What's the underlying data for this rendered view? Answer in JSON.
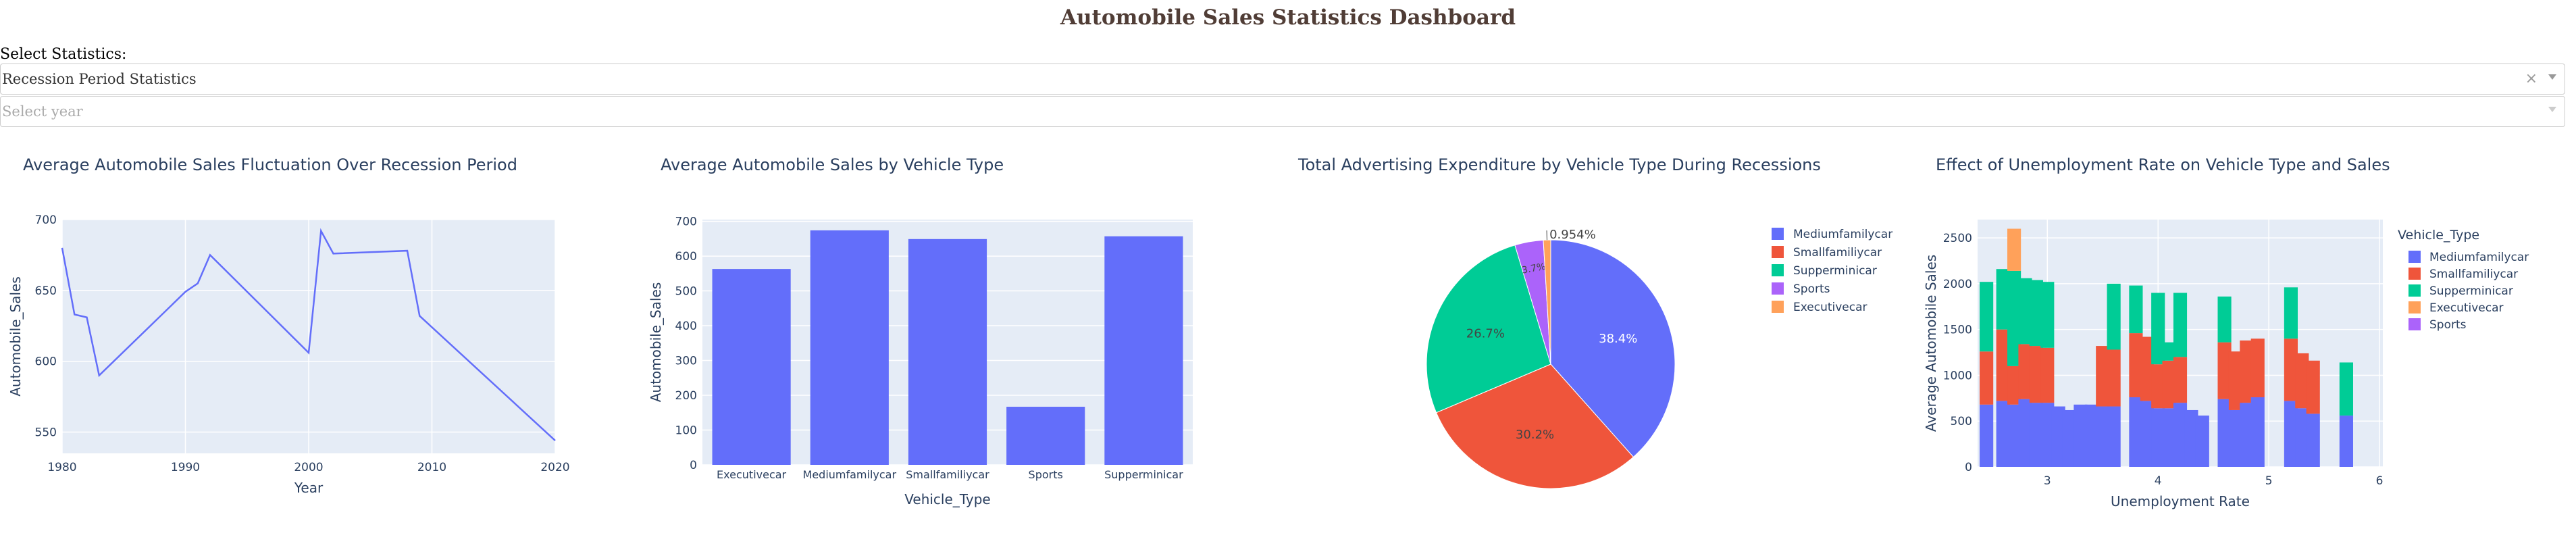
{
  "header": {
    "title": "Automobile Sales Statistics Dashboard"
  },
  "controls": {
    "select_label": "Select Statistics:",
    "statistics_value": "Recession Period Statistics",
    "clear_glyph": "×",
    "year_placeholder": "Select year"
  },
  "colors": {
    "blue": "#636efa",
    "red": "#EF553B",
    "green": "#00cc96",
    "purple": "#ab63fa",
    "orange": "#FFA15A",
    "plot_bg": "#E5ECF6",
    "title": "#503D36"
  },
  "chart_data": [
    {
      "type": "line",
      "title": "Average Automobile Sales Fluctuation Over Recession Period",
      "xlabel": "Year",
      "ylabel": "Automobile_Sales",
      "xlim": [
        1980,
        2020
      ],
      "ylim": [
        535,
        700
      ],
      "xticks": [
        1980,
        1990,
        2000,
        2010,
        2020
      ],
      "yticks": [
        550,
        600,
        650,
        700
      ],
      "x": [
        1980,
        1981,
        1982,
        1983,
        1990,
        1991,
        1992,
        2000,
        2001,
        2002,
        2008,
        2009,
        2020
      ],
      "y": [
        680,
        633,
        631,
        590,
        649,
        655,
        675,
        606,
        692,
        676,
        678,
        632,
        544
      ]
    },
    {
      "type": "bar",
      "title": "Average Automobile Sales by Vehicle Type",
      "xlabel": "Vehicle_Type",
      "ylabel": "Automobile_Sales",
      "ylim": [
        0,
        705
      ],
      "yticks": [
        0,
        100,
        200,
        300,
        400,
        500,
        600,
        700
      ],
      "categories": [
        "Executivecar",
        "Mediumfamilycar",
        "Smallfamiliycar",
        "Sports",
        "Supperminicar"
      ],
      "values": [
        563,
        674,
        649,
        167,
        657
      ]
    },
    {
      "type": "pie",
      "title": "Total Advertising Expenditure by Vehicle Type During Recessions",
      "labels": [
        "Mediumfamilycar",
        "Smallfamiliycar",
        "Supperminicar",
        "Sports",
        "Executivecar"
      ],
      "values": [
        38.4,
        30.2,
        26.7,
        3.7,
        0.954
      ],
      "text_labels": [
        "38.4%",
        "30.2%",
        "26.7%",
        "3.7%",
        "0.954%"
      ],
      "legend": "right"
    },
    {
      "type": "bar",
      "stacked": true,
      "title": "Effect of Unemployment Rate on Vehicle Type and Sales",
      "xlabel": "Unemployment Rate",
      "ylabel": "Average Automobile Sales",
      "legend_title": "Vehicle_Type",
      "legend": "right",
      "xlim": [
        2.37,
        6.03
      ],
      "ylim": [
        0,
        2700
      ],
      "xticks": [
        3,
        4,
        5,
        6
      ],
      "yticks": [
        0,
        500,
        1000,
        1500,
        2000,
        2500
      ],
      "series_order": [
        "Mediumfamilycar",
        "Smallfamiliycar",
        "Supperminicar",
        "Executivecar",
        "Sports"
      ],
      "x": [
        2.45,
        2.6,
        2.7,
        2.8,
        2.9,
        3.0,
        3.1,
        3.2,
        3.3,
        3.4,
        3.5,
        3.6,
        3.7,
        3.8,
        3.9,
        4.0,
        4.1,
        4.2,
        4.3,
        4.4,
        4.5,
        4.6,
        4.7,
        4.8,
        4.9,
        5.0,
        5.1,
        5.2,
        5.3,
        5.4,
        5.5,
        5.6,
        5.7,
        5.8,
        5.9,
        6.0
      ],
      "series": [
        {
          "name": "Mediumfamilycar",
          "values": [
            680,
            720,
            680,
            740,
            700,
            700,
            660,
            620,
            680,
            680,
            660,
            660,
            0,
            760,
            720,
            640,
            640,
            700,
            620,
            560,
            0,
            740,
            620,
            700,
            760,
            0,
            0,
            720,
            640,
            580,
            0,
            0,
            560,
            0,
            0,
            0
          ]
        },
        {
          "name": "Smallfamiliycar",
          "values": [
            580,
            780,
            420,
            600,
            620,
            600,
            0,
            0,
            0,
            0,
            660,
            620,
            0,
            700,
            700,
            480,
            520,
            500,
            0,
            0,
            0,
            620,
            640,
            680,
            640,
            0,
            0,
            680,
            600,
            580,
            0,
            0,
            0,
            0,
            0,
            0
          ]
        },
        {
          "name": "Supperminicar",
          "values": [
            760,
            660,
            1040,
            720,
            720,
            720,
            0,
            0,
            0,
            0,
            0,
            720,
            0,
            520,
            0,
            780,
            200,
            700,
            0,
            0,
            0,
            500,
            0,
            0,
            0,
            0,
            0,
            560,
            0,
            0,
            0,
            0,
            580,
            0,
            0,
            0
          ]
        },
        {
          "name": "Executivecar",
          "values": [
            0,
            0,
            460,
            0,
            0,
            0,
            0,
            0,
            0,
            0,
            0,
            0,
            0,
            0,
            0,
            0,
            0,
            0,
            0,
            0,
            0,
            0,
            0,
            0,
            0,
            0,
            0,
            0,
            0,
            0,
            0,
            0,
            0,
            0,
            0,
            0
          ]
        },
        {
          "name": "Sports",
          "values": [
            0,
            0,
            0,
            0,
            0,
            0,
            0,
            0,
            0,
            0,
            0,
            0,
            0,
            0,
            0,
            0,
            0,
            0,
            0,
            0,
            0,
            0,
            0,
            0,
            0,
            0,
            0,
            0,
            0,
            0,
            0,
            0,
            0,
            0,
            0,
            0
          ]
        }
      ]
    }
  ]
}
